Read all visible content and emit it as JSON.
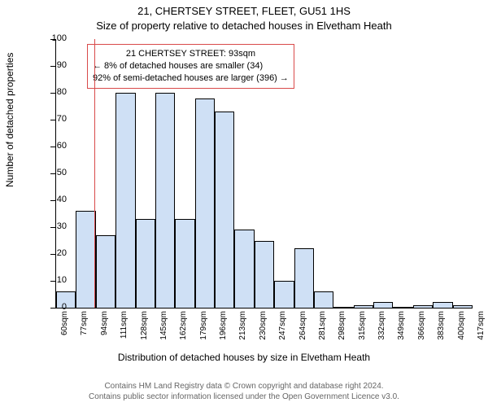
{
  "title_line1": "21, CHERTSEY STREET, FLEET, GU51 1HS",
  "title_line2": "Size of property relative to detached houses in Elvetham Heath",
  "ylabel": "Number of detached properties",
  "xlabel": "Distribution of detached houses by size in Elvetham Heath",
  "footer_line1": "Contains HM Land Registry data © Crown copyright and database right 2024.",
  "footer_line2": "Contains public sector information licensed under the Open Government Licence v3.0.",
  "annot_line1": "21 CHERTSEY STREET: 93sqm",
  "annot_line2": "← 8% of detached houses are smaller (34)",
  "annot_line3": "92% of semi-detached houses are larger (396) →",
  "chart": {
    "type": "histogram",
    "bar_fill": "#cfe0f5",
    "bar_stroke": "#000000",
    "bar_stroke_width": 0.5,
    "background": "#ffffff",
    "marker_color": "#d94a4a",
    "marker_x_value": 93,
    "ylim": [
      0,
      100
    ],
    "ytick_step": 10,
    "x_start": 60,
    "x_step": 17,
    "x_bins": 21,
    "x_unit": "sqm",
    "values": [
      6,
      36,
      27,
      80,
      33,
      80,
      33,
      78,
      73,
      29,
      25,
      10,
      22,
      6,
      0,
      1,
      2,
      0,
      1,
      2,
      1
    ],
    "annot_box_color": "#d94a4a",
    "font_size_title": 13,
    "font_size_label": 12,
    "font_size_tick": 11
  }
}
